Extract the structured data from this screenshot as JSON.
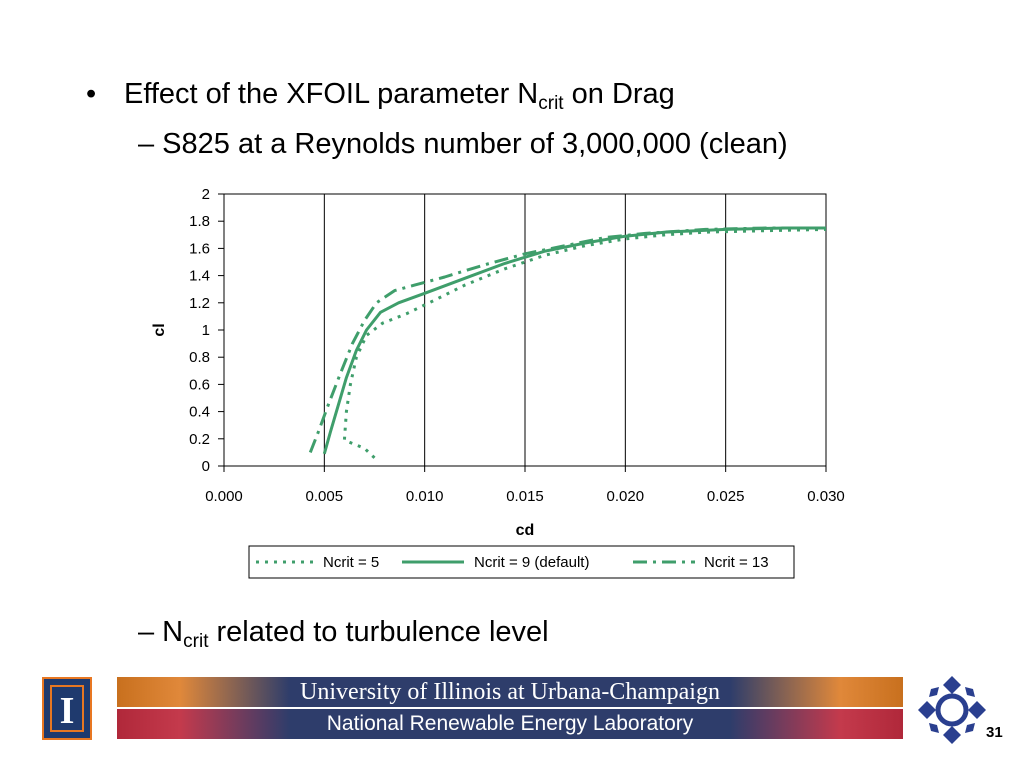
{
  "slide": {
    "bullet_symbol": "•",
    "bullet_text_before": "Effect of the XFOIL parameter N",
    "bullet_sub": "crit",
    "bullet_text_after": " on Drag",
    "sub1_text": "– S825 at a Reynolds number of 3,000,000 (clean)",
    "sub2_before": "– N",
    "sub2_sub": "crit",
    "sub2_after": " related to turbulence level",
    "page_number": "31"
  },
  "footer": {
    "title": "University of Illinois at Urbana-Champaign",
    "subtitle": "National Renewable Energy Laboratory",
    "university_logo_letter": "I",
    "lab_logo_icon": "nrel-diamond-icon"
  },
  "chart_data": {
    "type": "line",
    "xlabel": "cd",
    "ylabel": "cl",
    "xlim": [
      0.0,
      0.03
    ],
    "ylim": [
      0,
      2
    ],
    "x_ticks": [
      "0.000",
      "0.005",
      "0.010",
      "0.015",
      "0.020",
      "0.025",
      "0.030"
    ],
    "y_ticks": [
      "0",
      "0.2",
      "0.4",
      "0.6",
      "0.8",
      "1",
      "1.2",
      "1.4",
      "1.6",
      "1.8",
      "2"
    ],
    "grid": "vertical",
    "legend_position": "bottom",
    "color": "#3f9e6b",
    "series": [
      {
        "name": "Ncrit = 5",
        "style": "dotted",
        "points": [
          [
            0.0075,
            0.06
          ],
          [
            0.007,
            0.13
          ],
          [
            0.006,
            0.19
          ],
          [
            0.0061,
            0.4
          ],
          [
            0.0063,
            0.6
          ],
          [
            0.0066,
            0.8
          ],
          [
            0.0071,
            0.96
          ],
          [
            0.0079,
            1.05
          ],
          [
            0.0091,
            1.12
          ],
          [
            0.0105,
            1.22
          ],
          [
            0.012,
            1.33
          ],
          [
            0.014,
            1.45
          ],
          [
            0.016,
            1.55
          ],
          [
            0.018,
            1.62
          ],
          [
            0.02,
            1.67
          ],
          [
            0.022,
            1.7
          ],
          [
            0.024,
            1.72
          ],
          [
            0.027,
            1.73
          ],
          [
            0.03,
            1.74
          ]
        ]
      },
      {
        "name": "Ncrit = 9 (default)",
        "style": "solid",
        "points": [
          [
            0.005,
            0.09
          ],
          [
            0.0053,
            0.25
          ],
          [
            0.0057,
            0.45
          ],
          [
            0.0061,
            0.65
          ],
          [
            0.0066,
            0.85
          ],
          [
            0.0071,
            1.0
          ],
          [
            0.0078,
            1.13
          ],
          [
            0.0087,
            1.2
          ],
          [
            0.01,
            1.27
          ],
          [
            0.012,
            1.38
          ],
          [
            0.014,
            1.49
          ],
          [
            0.016,
            1.58
          ],
          [
            0.018,
            1.64
          ],
          [
            0.02,
            1.69
          ],
          [
            0.022,
            1.72
          ],
          [
            0.025,
            1.74
          ],
          [
            0.028,
            1.75
          ],
          [
            0.03,
            1.75
          ]
        ]
      },
      {
        "name": "Ncrit = 13",
        "style": "dashed",
        "points": [
          [
            0.0043,
            0.1
          ],
          [
            0.0047,
            0.25
          ],
          [
            0.0052,
            0.45
          ],
          [
            0.0058,
            0.68
          ],
          [
            0.0064,
            0.9
          ],
          [
            0.007,
            1.07
          ],
          [
            0.0076,
            1.2
          ],
          [
            0.0085,
            1.29
          ],
          [
            0.0095,
            1.33
          ],
          [
            0.011,
            1.39
          ],
          [
            0.013,
            1.48
          ],
          [
            0.015,
            1.56
          ],
          [
            0.017,
            1.62
          ],
          [
            0.019,
            1.68
          ],
          [
            0.021,
            1.71
          ],
          [
            0.024,
            1.74
          ],
          [
            0.027,
            1.75
          ],
          [
            0.03,
            1.75
          ]
        ]
      }
    ]
  }
}
